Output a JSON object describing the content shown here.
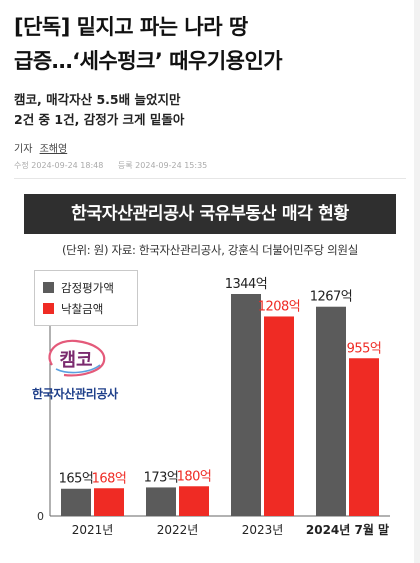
{
  "article": {
    "headline_lines": [
      "[단독] 밑지고 파는 나라 땅",
      "급증…‘세수펑크’ 때우기용인가"
    ],
    "subtitle_lines": [
      "캠코, 매각자산 5.5배 늘었지만",
      "2건 중 1건, 감정가 크게 밑돌아"
    ],
    "byline_label": "기자",
    "reporter": "조해영",
    "created": "수정 2024-09-24 18:48",
    "registered": "등록 2024-09-24 15:35"
  },
  "logo": {
    "mark": "캠코",
    "name": "한국자산관리공사"
  },
  "chart_data": {
    "type": "bar",
    "title": "한국자산관리공사 국유부동산 매각 현황",
    "source": "(단위: 원) 자료: 한국자산관리공사, 강훈식 더불어민주당 의원실",
    "categories": [
      "2021년",
      "2022년",
      "2023년",
      "2024년 7월 말"
    ],
    "series": [
      {
        "name": "감정평가액",
        "values": [
          165,
          173,
          1344,
          1267
        ],
        "labels": [
          "165억",
          "173억",
          "1344억",
          "1267억"
        ],
        "color": "#5b5b5b"
      },
      {
        "name": "낙찰금액",
        "values": [
          168,
          180,
          1208,
          955
        ],
        "labels": [
          "168억",
          "180억",
          "1208억",
          "955억"
        ],
        "color": "#ef2b24"
      }
    ],
    "y_tick": "0",
    "ylim": [
      0,
      1344
    ],
    "label_colors": [
      "#222222",
      "#ef2b24"
    ],
    "grid": false,
    "legend": "top-left"
  }
}
